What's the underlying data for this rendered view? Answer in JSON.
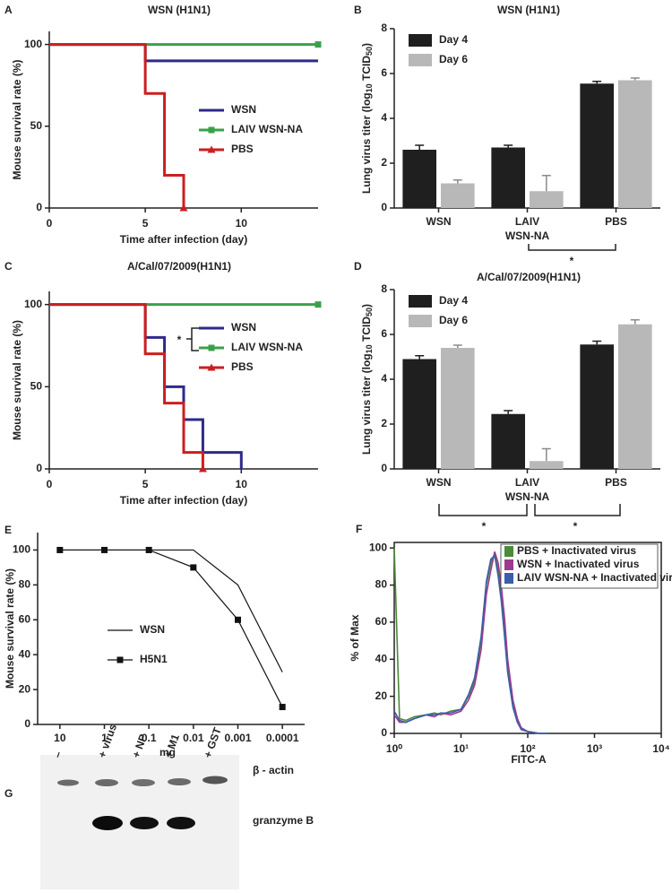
{
  "chart_data": [
    {
      "type": "line",
      "panel_label": "A",
      "title": "WSN (H1N1)",
      "x_label": "Time after infection (day)",
      "y_label": "Mouse survival rate (%)",
      "xlim": [
        0,
        14
      ],
      "xticks": [
        0,
        5,
        10
      ],
      "ylim": [
        0,
        108
      ],
      "yticks": [
        0,
        50,
        100
      ],
      "markers": "last",
      "series": [
        {
          "name": "WSN",
          "color": "#2e2a8a",
          "marker": "none",
          "x": [
            0,
            5,
            5,
            14
          ],
          "values": [
            100,
            100,
            90,
            90
          ]
        },
        {
          "name": "LAIV WSN-NA",
          "color": "#3aa04a",
          "marker": "square",
          "x": [
            0,
            14
          ],
          "values": [
            100,
            100
          ]
        },
        {
          "name": "PBS",
          "color": "#cc1f1f",
          "marker": "triangle",
          "x": [
            0,
            5,
            5,
            6,
            6,
            7,
            7
          ],
          "values": [
            100,
            100,
            70,
            70,
            20,
            20,
            0
          ]
        }
      ]
    },
    {
      "type": "bar",
      "panel_label": "B",
      "title": "WSN (H1N1)",
      "y_label": [
        "Lung virus titer (log",
        "10",
        " TCID",
        "50",
        ")"
      ],
      "categories": [
        [
          "WSN"
        ],
        [
          "LAIV",
          "WSN-NA"
        ],
        [
          "PBS"
        ]
      ],
      "ylim": [
        0,
        8
      ],
      "yticks": [
        0,
        2,
        4,
        6,
        8
      ],
      "annotations": [
        "*"
      ],
      "series": [
        {
          "name": "Day 4",
          "color": "#1f1f1f",
          "values": [
            2.6,
            2.7,
            5.55
          ],
          "errors": [
            0.2,
            0.1,
            0.1
          ]
        },
        {
          "name": "Day 6",
          "color": "#b8b8b8",
          "values": [
            1.1,
            0.75,
            5.7
          ],
          "errors": [
            0.15,
            0.7,
            0.1
          ]
        }
      ]
    },
    {
      "type": "line",
      "panel_label": "C",
      "title": "A/Cal/07/2009(H1N1)",
      "x_label": "Time after infection (day)",
      "y_label": "Mouse survival rate (%)",
      "xlim": [
        0,
        14
      ],
      "xticks": [
        0,
        5,
        10
      ],
      "ylim": [
        0,
        108
      ],
      "yticks": [
        0,
        50,
        100
      ],
      "markers": "last",
      "annotations": [
        "*"
      ],
      "series": [
        {
          "name": "WSN",
          "color": "#2e2a8a",
          "marker": "none",
          "x": [
            0,
            5,
            5,
            6,
            6,
            7,
            7,
            8,
            8,
            10,
            10
          ],
          "values": [
            100,
            100,
            80,
            80,
            50,
            50,
            30,
            30,
            10,
            10,
            0
          ]
        },
        {
          "name": "LAIV WSN-NA",
          "color": "#3aa04a",
          "marker": "square",
          "x": [
            0,
            14
          ],
          "values": [
            100,
            100
          ]
        },
        {
          "name": "PBS",
          "color": "#cc1f1f",
          "marker": "triangle",
          "x": [
            0,
            5,
            5,
            6,
            6,
            7,
            7,
            8,
            8
          ],
          "values": [
            100,
            100,
            70,
            70,
            40,
            40,
            10,
            10,
            0
          ]
        }
      ]
    },
    {
      "type": "bar",
      "panel_label": "D",
      "title": "A/Cal/07/2009(H1N1)",
      "y_label": [
        "Lung virus titer (log",
        "10",
        " TCID",
        "50",
        ")"
      ],
      "categories": [
        [
          "WSN"
        ],
        [
          "LAIV",
          "WSN-NA"
        ],
        [
          "PBS"
        ]
      ],
      "ylim": [
        0,
        8
      ],
      "yticks": [
        0,
        2,
        4,
        6,
        8
      ],
      "annotations": [
        "*",
        "*"
      ],
      "series": [
        {
          "name": "Day 4",
          "color": "#1f1f1f",
          "values": [
            4.9,
            2.45,
            5.55
          ],
          "errors": [
            0.15,
            0.15,
            0.15
          ]
        },
        {
          "name": "Day 6",
          "color": "#b8b8b8",
          "values": [
            5.4,
            0.35,
            6.45
          ],
          "errors": [
            0.12,
            0.55,
            0.2
          ]
        }
      ]
    },
    {
      "type": "line",
      "panel_label": "E",
      "x_label": "mg",
      "y_label": "Mouse survival rate (%)",
      "categories": [
        "10",
        "1",
        "0.1",
        "0.01",
        "0.001",
        "0.0001"
      ],
      "ylim": [
        0,
        110
      ],
      "yticks": [
        0,
        20,
        40,
        60,
        80,
        100
      ],
      "markers": "all",
      "series": [
        {
          "name": "WSN",
          "color": "#111111",
          "marker": "none",
          "values": [
            100,
            100,
            100,
            100,
            80,
            30
          ]
        },
        {
          "name": "H5N1",
          "color": "#111111",
          "marker": "square",
          "values": [
            100,
            100,
            100,
            90,
            60,
            10
          ]
        }
      ]
    },
    {
      "type": "line",
      "panel_label": "F",
      "x_label": "FITC-A",
      "y_label": "% of Max",
      "log_x": true,
      "markers": "none",
      "xlim": [
        1,
        10000
      ],
      "xticks": [
        {
          "value": 1,
          "label": "10⁰"
        },
        {
          "value": 10,
          "label": "10¹"
        },
        {
          "value": 100,
          "label": "10²"
        },
        {
          "value": 1000,
          "label": "10³"
        },
        {
          "value": 10000,
          "label": "10⁴"
        }
      ],
      "ylim": [
        0,
        103
      ],
      "yticks": [
        0,
        20,
        40,
        60,
        80,
        100
      ],
      "x": [
        1,
        1.2,
        1.5,
        2,
        3,
        4,
        5,
        7,
        10,
        13,
        16,
        20,
        24,
        28,
        32,
        36,
        40,
        45,
        50,
        60,
        70,
        80,
        100,
        150,
        200
      ],
      "series": [
        {
          "name": "PBS + Inactivated virus",
          "color": "#4a8a3a",
          "values": [
            100,
            8,
            7,
            9,
            10,
            11,
            10,
            12,
            13,
            20,
            28,
            50,
            80,
            92,
            97,
            88,
            75,
            55,
            35,
            15,
            6,
            3,
            1,
            0,
            0
          ]
        },
        {
          "name": "WSN + Inactivated virus",
          "color": "#9b3a8f",
          "values": [
            10,
            6,
            6,
            8,
            10,
            9,
            11,
            10,
            12,
            18,
            26,
            45,
            75,
            88,
            98,
            92,
            80,
            62,
            40,
            18,
            8,
            3,
            1,
            0,
            0
          ]
        },
        {
          "name": "LAIV WSN-NA + Inactivated virus",
          "color": "#3a5fa8",
          "values": [
            12,
            7,
            6,
            8,
            10,
            10,
            11,
            11,
            13,
            21,
            30,
            52,
            82,
            94,
            96,
            85,
            72,
            52,
            33,
            14,
            6,
            2,
            1,
            0,
            0
          ]
        }
      ]
    }
  ],
  "blot": {
    "panel_label": "G",
    "lanes": [
      "–",
      "+ virus",
      "+ NP",
      "+ M1",
      "+ GST"
    ],
    "rows": [
      "β - actin",
      "granzyme B"
    ]
  }
}
